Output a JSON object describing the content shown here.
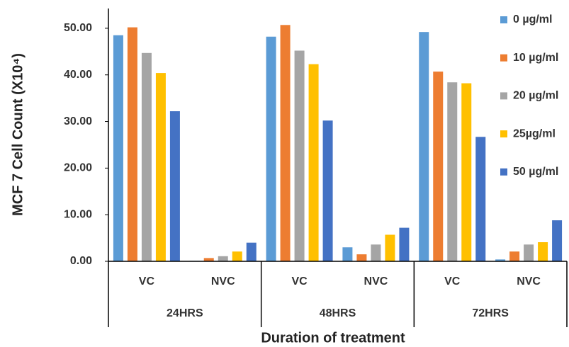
{
  "chart_data": {
    "type": "grouped-bar",
    "y_label": "MCF 7 Cell Count (X10⁴)",
    "x_label": "Duration of treatment",
    "categories": [
      "VC",
      "NVC",
      "VC",
      "NVC",
      "VC",
      "NVC"
    ],
    "groups": [
      "24HRS",
      "48HRS",
      "72HRS"
    ],
    "ylim": [
      0,
      55
    ],
    "yticks": [
      {
        "value": 0,
        "label": "0.00"
      },
      {
        "value": 10,
        "label": "10.00"
      },
      {
        "value": 20,
        "label": "20.00"
      },
      {
        "value": 30,
        "label": "30.00"
      },
      {
        "value": 40,
        "label": "40.00"
      },
      {
        "value": 50,
        "label": "50.00"
      }
    ],
    "legend": "right",
    "series": [
      {
        "name": "0 µg/ml",
        "color": "#5b9bd5",
        "values": [
          48.5,
          0.1,
          48.2,
          3.0,
          49.2,
          0.4
        ]
      },
      {
        "name": "10 µg/ml",
        "color": "#ed7d31",
        "values": [
          50.2,
          0.7,
          50.7,
          1.5,
          40.7,
          2.1
        ]
      },
      {
        "name": "20 µg/ml",
        "color": "#a5a5a5",
        "values": [
          44.7,
          1.1,
          45.2,
          3.6,
          38.4,
          3.6
        ]
      },
      {
        "name": "25µg/ml",
        "color": "#ffc000",
        "values": [
          40.4,
          2.1,
          42.3,
          5.7,
          38.2,
          4.1
        ]
      },
      {
        "name": "50 µg/ml",
        "color": "#4472c4",
        "values": [
          32.2,
          4.0,
          30.2,
          7.2,
          26.7,
          8.8
        ]
      }
    ]
  }
}
